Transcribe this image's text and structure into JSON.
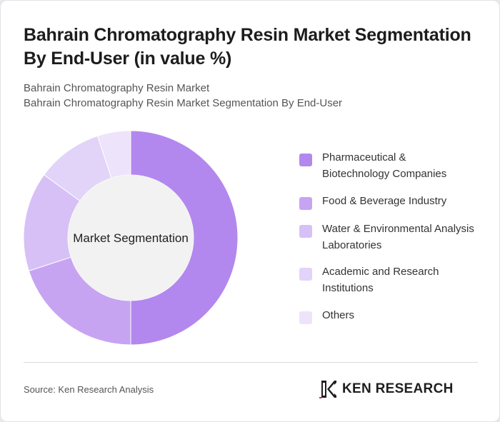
{
  "title": "Bahrain Chromatography Resin Market Segmentation By End-User (in value %)",
  "subtitle_1": "Bahrain Chromatography Resin Market",
  "subtitle_2": "Bahrain Chromatography Resin Market Segmentation By End-User",
  "center_label": "Market Segmentation",
  "source": "Source: Ken Research Analysis",
  "logo_text": "KEN RESEARCH",
  "chart_data": {
    "type": "pie",
    "variant": "donut",
    "title": "Bahrain Chromatography Resin Market Segmentation By End-User (in value %)",
    "categories": [
      "Pharmaceutical & Biotechnology Companies",
      "Food & Beverage Industry",
      "Water & Environmental Analysis Laboratories",
      "Academic and Research Institutions",
      "Others"
    ],
    "values": [
      50,
      20,
      15,
      10,
      5
    ],
    "colors": [
      "#b388ee",
      "#c6a4f2",
      "#d6c0f6",
      "#e2d3f8",
      "#ede3fa"
    ],
    "legend_placement": "right",
    "center_label": "Market Segmentation"
  }
}
